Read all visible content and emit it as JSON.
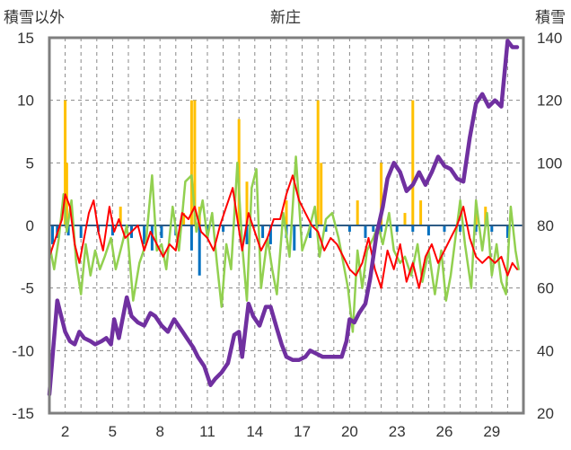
{
  "chart_data": {
    "type": "line",
    "title": "新庄",
    "ylabel_left": "積雪以外",
    "ylabel_right": "積雪",
    "ylim_left": [
      -15,
      15
    ],
    "ylim_right": [
      20,
      140
    ],
    "yticks_left": [
      "15",
      "10",
      "5",
      "0",
      "-5",
      "-10",
      "-15"
    ],
    "yticks_right": [
      "140",
      "120",
      "100",
      "80",
      "60",
      "40",
      "20"
    ],
    "x_range": [
      1,
      31
    ],
    "xticks": [
      "2",
      "5",
      "8",
      "11",
      "14",
      "17",
      "20",
      "23",
      "26",
      "29"
    ],
    "grid": true,
    "legend": "none",
    "colors": {
      "snow_depth": "#7030a0",
      "precip": "#ffc000",
      "snowfall_neg": "#0070c0",
      "temp_max": "#ff0000",
      "temp_min": "#92d050",
      "frame": "#7f7f7f",
      "grid": "#888888"
    },
    "series": [
      {
        "key": "snow_depth",
        "axis": "right",
        "points": [
          [
            1.0,
            26
          ],
          [
            1.2,
            38
          ],
          [
            1.5,
            56
          ],
          [
            1.7,
            52
          ],
          [
            2.0,
            46
          ],
          [
            2.3,
            43
          ],
          [
            2.6,
            42
          ],
          [
            2.9,
            46
          ],
          [
            3.2,
            44
          ],
          [
            3.6,
            43
          ],
          [
            3.9,
            42
          ],
          [
            4.3,
            43
          ],
          [
            4.6,
            44
          ],
          [
            4.9,
            42
          ],
          [
            5.1,
            50
          ],
          [
            5.4,
            44
          ],
          [
            5.9,
            57
          ],
          [
            6.2,
            51
          ],
          [
            6.6,
            49
          ],
          [
            7.0,
            48
          ],
          [
            7.4,
            52
          ],
          [
            7.7,
            51
          ],
          [
            8.1,
            48
          ],
          [
            8.5,
            46
          ],
          [
            8.9,
            50
          ],
          [
            9.3,
            47
          ],
          [
            9.7,
            44
          ],
          [
            10.1,
            41
          ],
          [
            10.4,
            38
          ],
          [
            10.8,
            35
          ],
          [
            11.0,
            32
          ],
          [
            11.2,
            29
          ],
          [
            11.5,
            31
          ],
          [
            11.9,
            33
          ],
          [
            12.3,
            36
          ],
          [
            12.7,
            45
          ],
          [
            13.0,
            46
          ],
          [
            13.2,
            38
          ],
          [
            13.6,
            55
          ],
          [
            13.9,
            51
          ],
          [
            14.3,
            48
          ],
          [
            14.7,
            54
          ],
          [
            15.0,
            54
          ],
          [
            15.4,
            47
          ],
          [
            15.7,
            42
          ],
          [
            16.0,
            38
          ],
          [
            16.4,
            37
          ],
          [
            16.8,
            37
          ],
          [
            17.2,
            38
          ],
          [
            17.5,
            40
          ],
          [
            17.9,
            39
          ],
          [
            18.3,
            38
          ],
          [
            18.6,
            38
          ],
          [
            18.9,
            38
          ],
          [
            19.2,
            38
          ],
          [
            19.5,
            38
          ],
          [
            19.8,
            43
          ],
          [
            20.0,
            50
          ],
          [
            20.3,
            49
          ],
          [
            20.6,
            52
          ],
          [
            21.0,
            55
          ],
          [
            21.3,
            63
          ],
          [
            21.7,
            77
          ],
          [
            22.1,
            86
          ],
          [
            22.4,
            95
          ],
          [
            22.8,
            100
          ],
          [
            23.2,
            97
          ],
          [
            23.6,
            91
          ],
          [
            24.0,
            93
          ],
          [
            24.4,
            97
          ],
          [
            24.8,
            93
          ],
          [
            25.2,
            97
          ],
          [
            25.6,
            102
          ],
          [
            26.0,
            99
          ],
          [
            26.4,
            98
          ],
          [
            26.8,
            95
          ],
          [
            27.2,
            94
          ],
          [
            27.6,
            108
          ],
          [
            28.0,
            119
          ],
          [
            28.4,
            122
          ],
          [
            28.8,
            118
          ],
          [
            29.2,
            120
          ],
          [
            29.6,
            118
          ],
          [
            30.0,
            139
          ],
          [
            30.3,
            137
          ],
          [
            30.6,
            137
          ]
        ]
      },
      {
        "key": "temp_max",
        "axis": "left",
        "points": [
          [
            1.0,
            -2.5
          ],
          [
            1.4,
            -1.0
          ],
          [
            1.8,
            0.5
          ],
          [
            2.0,
            2.5
          ],
          [
            2.3,
            1.5
          ],
          [
            2.6,
            -1.5
          ],
          [
            2.9,
            -3.0
          ],
          [
            3.2,
            -1.0
          ],
          [
            3.5,
            1.0
          ],
          [
            3.8,
            2.0
          ],
          [
            4.1,
            -0.5
          ],
          [
            4.4,
            -2.0
          ],
          [
            4.8,
            1.5
          ],
          [
            5.1,
            -0.5
          ],
          [
            5.4,
            0.5
          ],
          [
            5.8,
            -1.0
          ],
          [
            6.2,
            -0.5
          ],
          [
            6.6,
            0.0
          ],
          [
            7.0,
            -2.0
          ],
          [
            7.4,
            -0.5
          ],
          [
            7.8,
            -1.5
          ],
          [
            8.2,
            -2.5
          ],
          [
            8.6,
            -1.5
          ],
          [
            9.0,
            -2.0
          ],
          [
            9.4,
            1.0
          ],
          [
            9.8,
            0.5
          ],
          [
            10.2,
            1.5
          ],
          [
            10.6,
            -0.5
          ],
          [
            11.0,
            -1.0
          ],
          [
            11.4,
            -2.0
          ],
          [
            11.8,
            0.0
          ],
          [
            12.2,
            1.5
          ],
          [
            12.6,
            3.0
          ],
          [
            12.9,
            0.5
          ],
          [
            13.2,
            -2.0
          ],
          [
            13.6,
            1.0
          ],
          [
            14.0,
            -0.5
          ],
          [
            14.4,
            -2.0
          ],
          [
            14.8,
            -1.0
          ],
          [
            15.2,
            0.5
          ],
          [
            15.6,
            0.5
          ],
          [
            16.0,
            2.5
          ],
          [
            16.4,
            4.0
          ],
          [
            16.8,
            2.0
          ],
          [
            17.2,
            1.0
          ],
          [
            17.6,
            0.0
          ],
          [
            18.0,
            -0.5
          ],
          [
            18.4,
            -2.0
          ],
          [
            18.8,
            -1.0
          ],
          [
            19.2,
            -1.5
          ],
          [
            19.6,
            -2.5
          ],
          [
            20.0,
            -3.5
          ],
          [
            20.4,
            -4.0
          ],
          [
            20.8,
            -3.0
          ],
          [
            21.2,
            -1.0
          ],
          [
            21.6,
            -3.5
          ],
          [
            22.0,
            -5.0
          ],
          [
            22.4,
            -2.0
          ],
          [
            22.8,
            -3.5
          ],
          [
            23.2,
            -1.5
          ],
          [
            23.6,
            -4.5
          ],
          [
            24.0,
            -3.0
          ],
          [
            24.4,
            -5.0
          ],
          [
            24.8,
            -2.5
          ],
          [
            25.2,
            -1.5
          ],
          [
            25.6,
            -3.0
          ],
          [
            26.0,
            -2.0
          ],
          [
            26.4,
            -1.0
          ],
          [
            26.8,
            0.0
          ],
          [
            27.2,
            1.5
          ],
          [
            27.6,
            -1.0
          ],
          [
            28.0,
            -2.5
          ],
          [
            28.4,
            -3.0
          ],
          [
            28.8,
            -2.5
          ],
          [
            29.2,
            -3.0
          ],
          [
            29.6,
            -2.5
          ],
          [
            30.0,
            -4.0
          ],
          [
            30.3,
            -3.0
          ],
          [
            30.6,
            -3.5
          ]
        ]
      },
      {
        "key": "temp_min",
        "axis": "left",
        "points": [
          [
            1.0,
            -1.5
          ],
          [
            1.3,
            -3.5
          ],
          [
            1.6,
            -1.0
          ],
          [
            1.9,
            2.5
          ],
          [
            2.1,
            -0.5
          ],
          [
            2.4,
            2.0
          ],
          [
            2.7,
            -3.0
          ],
          [
            3.0,
            -5.5
          ],
          [
            3.3,
            -1.5
          ],
          [
            3.6,
            -4.0
          ],
          [
            3.9,
            -2.0
          ],
          [
            4.2,
            -3.5
          ],
          [
            4.5,
            -2.5
          ],
          [
            4.9,
            -1.0
          ],
          [
            5.2,
            -3.5
          ],
          [
            5.5,
            -2.0
          ],
          [
            5.9,
            0.0
          ],
          [
            6.3,
            -6.0
          ],
          [
            6.7,
            -3.0
          ],
          [
            7.1,
            -1.5
          ],
          [
            7.5,
            4.0
          ],
          [
            7.8,
            -2.0
          ],
          [
            8.1,
            -1.5
          ],
          [
            8.4,
            -3.5
          ],
          [
            8.8,
            1.5
          ],
          [
            9.2,
            -2.0
          ],
          [
            9.6,
            3.5
          ],
          [
            10.0,
            4.0
          ],
          [
            10.3,
            -0.5
          ],
          [
            10.7,
            2.0
          ],
          [
            11.0,
            -1.0
          ],
          [
            11.3,
            1.0
          ],
          [
            11.6,
            -3.0
          ],
          [
            11.9,
            -6.5
          ],
          [
            12.2,
            -1.5
          ],
          [
            12.5,
            -3.5
          ],
          [
            12.9,
            5.0
          ],
          [
            13.2,
            -1.5
          ],
          [
            13.5,
            -6.0
          ],
          [
            13.8,
            3.0
          ],
          [
            14.1,
            4.5
          ],
          [
            14.4,
            -5.0
          ],
          [
            14.8,
            -1.0
          ],
          [
            15.1,
            -3.5
          ],
          [
            15.4,
            -5.5
          ],
          [
            15.8,
            1.0
          ],
          [
            16.2,
            -2.5
          ],
          [
            16.6,
            5.5
          ],
          [
            17.0,
            -2.0
          ],
          [
            17.4,
            -0.5
          ],
          [
            17.8,
            1.5
          ],
          [
            18.1,
            -2.5
          ],
          [
            18.5,
            0.5
          ],
          [
            18.9,
            1.0
          ],
          [
            19.3,
            -1.0
          ],
          [
            19.6,
            -3.0
          ],
          [
            19.9,
            -5.0
          ],
          [
            20.2,
            -8.5
          ],
          [
            20.5,
            -2.0
          ],
          [
            20.8,
            -5.0
          ],
          [
            21.1,
            -2.0
          ],
          [
            21.5,
            -1.0
          ],
          [
            21.8,
            0.0
          ],
          [
            22.1,
            -1.5
          ],
          [
            22.5,
            1.0
          ],
          [
            22.8,
            -2.0
          ],
          [
            23.2,
            -3.0
          ],
          [
            23.5,
            -2.5
          ],
          [
            23.9,
            -4.0
          ],
          [
            24.3,
            -1.5
          ],
          [
            24.6,
            -4.5
          ],
          [
            25.0,
            -2.0
          ],
          [
            25.4,
            -5.5
          ],
          [
            25.8,
            -2.0
          ],
          [
            26.1,
            -6.0
          ],
          [
            26.4,
            -4.0
          ],
          [
            26.7,
            -1.0
          ],
          [
            27.0,
            2.0
          ],
          [
            27.3,
            -1.5
          ],
          [
            27.7,
            -5.0
          ],
          [
            28.0,
            2.0
          ],
          [
            28.4,
            -2.0
          ],
          [
            28.7,
            1.0
          ],
          [
            29.0,
            -4.0
          ],
          [
            29.3,
            -1.5
          ],
          [
            29.6,
            -4.5
          ],
          [
            29.9,
            -5.5
          ],
          [
            30.2,
            1.5
          ],
          [
            30.5,
            -2.0
          ],
          [
            30.7,
            -3.5
          ]
        ]
      }
    ],
    "bars": {
      "key": "precip",
      "axis": "left",
      "points": [
        [
          2.0,
          10.0
        ],
        [
          2.1,
          5.0
        ],
        [
          5.5,
          1.5
        ],
        [
          9.5,
          1.0
        ],
        [
          10.0,
          10.0
        ],
        [
          10.2,
          10.0
        ],
        [
          10.5,
          1.5
        ],
        [
          13.0,
          8.5
        ],
        [
          13.5,
          3.5
        ],
        [
          16.0,
          2.0
        ],
        [
          18.0,
          10.0
        ],
        [
          18.2,
          5.0
        ],
        [
          20.5,
          2.0
        ],
        [
          22.0,
          5.0
        ],
        [
          23.5,
          1.0
        ],
        [
          24.0,
          10.0
        ],
        [
          24.5,
          2.0
        ],
        [
          28.0,
          1.5
        ],
        [
          28.6,
          1.5
        ]
      ]
    },
    "neg_bars": {
      "key": "snowfall_neg",
      "axis": "left",
      "points": [
        [
          1.2,
          -1.5
        ],
        [
          1.5,
          -1.0
        ],
        [
          2.2,
          -0.8
        ],
        [
          3.0,
          -1.0
        ],
        [
          4.1,
          -0.5
        ],
        [
          5.0,
          -0.8
        ],
        [
          6.2,
          -1.0
        ],
        [
          7.0,
          -1.5
        ],
        [
          7.5,
          -2.0
        ],
        [
          8.1,
          -1.0
        ],
        [
          9.0,
          -0.8
        ],
        [
          10.0,
          -2.0
        ],
        [
          10.5,
          -4.0
        ],
        [
          11.0,
          -1.0
        ],
        [
          12.0,
          -0.5
        ],
        [
          13.5,
          -1.5
        ],
        [
          14.5,
          -1.0
        ],
        [
          15.0,
          -1.5
        ],
        [
          16.0,
          -1.0
        ],
        [
          16.5,
          -2.0
        ],
        [
          17.5,
          -1.0
        ],
        [
          18.5,
          -0.5
        ],
        [
          20.0,
          -0.5
        ],
        [
          21.0,
          -1.0
        ],
        [
          21.5,
          -0.5
        ],
        [
          22.0,
          -0.5
        ],
        [
          23.0,
          -0.5
        ],
        [
          24.0,
          -0.5
        ],
        [
          25.0,
          -0.8
        ],
        [
          26.0,
          -0.5
        ],
        [
          27.0,
          -0.5
        ],
        [
          28.0,
          -0.5
        ],
        [
          29.0,
          -0.5
        ],
        [
          30.0,
          -1.0
        ]
      ]
    }
  }
}
